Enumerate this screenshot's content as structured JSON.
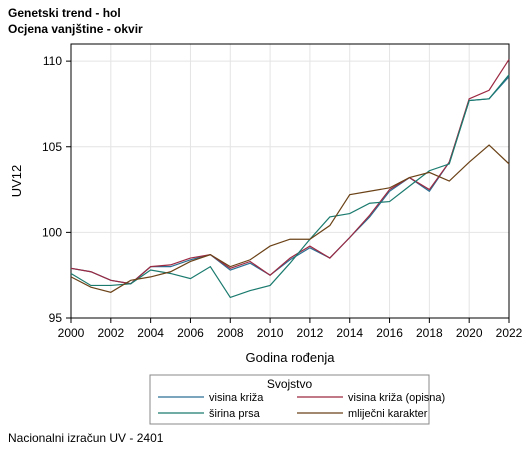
{
  "header": {
    "title": "Genetski trend - hol",
    "subtitle": "Ocjena vanjštine - okvir"
  },
  "footnote": "Nacionalni izračun UV - 2401",
  "chart_data": {
    "type": "line",
    "xlabel": "Godina rođenja",
    "ylabel": "UV12",
    "xlim": [
      2000,
      2022
    ],
    "ylim": [
      95,
      111
    ],
    "x_ticks": [
      2000,
      2002,
      2004,
      2006,
      2008,
      2010,
      2012,
      2014,
      2016,
      2018,
      2020,
      2022
    ],
    "y_ticks": [
      95,
      100,
      105,
      110
    ],
    "grid": true,
    "legend_title": "Svojstvo",
    "legend_position": "bottom",
    "x": [
      2000,
      2001,
      2002,
      2003,
      2004,
      2005,
      2006,
      2007,
      2008,
      2009,
      2010,
      2011,
      2012,
      2013,
      2014,
      2015,
      2016,
      2017,
      2018,
      2019,
      2020,
      2021,
      2022
    ],
    "series": [
      {
        "name": "visina križa",
        "color": "#2a6f93",
        "values": [
          97.9,
          97.7,
          97.2,
          97.0,
          98.0,
          98.0,
          98.4,
          98.7,
          97.8,
          98.2,
          97.5,
          98.4,
          99.1,
          98.5,
          99.7,
          100.9,
          102.4,
          103.2,
          102.4,
          104.1,
          107.7,
          107.8,
          109.1
        ]
      },
      {
        "name": "visina križa (opisna)",
        "color": "#9c2942",
        "values": [
          97.9,
          97.7,
          97.2,
          97.0,
          98.0,
          98.1,
          98.5,
          98.7,
          97.9,
          98.3,
          97.5,
          98.5,
          99.2,
          98.5,
          99.7,
          101.0,
          102.5,
          103.2,
          102.5,
          104.1,
          107.8,
          108.3,
          110.1
        ]
      },
      {
        "name": "širina prsa",
        "color": "#1a7a6e",
        "values": [
          97.6,
          96.9,
          96.9,
          97.0,
          97.8,
          97.6,
          97.3,
          98.0,
          96.2,
          96.6,
          96.9,
          98.2,
          99.6,
          100.9,
          101.1,
          101.7,
          101.8,
          102.7,
          103.6,
          104.0,
          107.7,
          107.8,
          109.2
        ]
      },
      {
        "name": "mliječni karakter",
        "color": "#6b4217",
        "values": [
          97.4,
          96.8,
          96.5,
          97.2,
          97.4,
          97.7,
          98.3,
          98.7,
          98.0,
          98.4,
          99.2,
          99.6,
          99.6,
          100.4,
          102.2,
          102.4,
          102.6,
          103.2,
          103.5,
          103.0,
          104.1,
          105.1,
          104.0
        ]
      }
    ]
  }
}
